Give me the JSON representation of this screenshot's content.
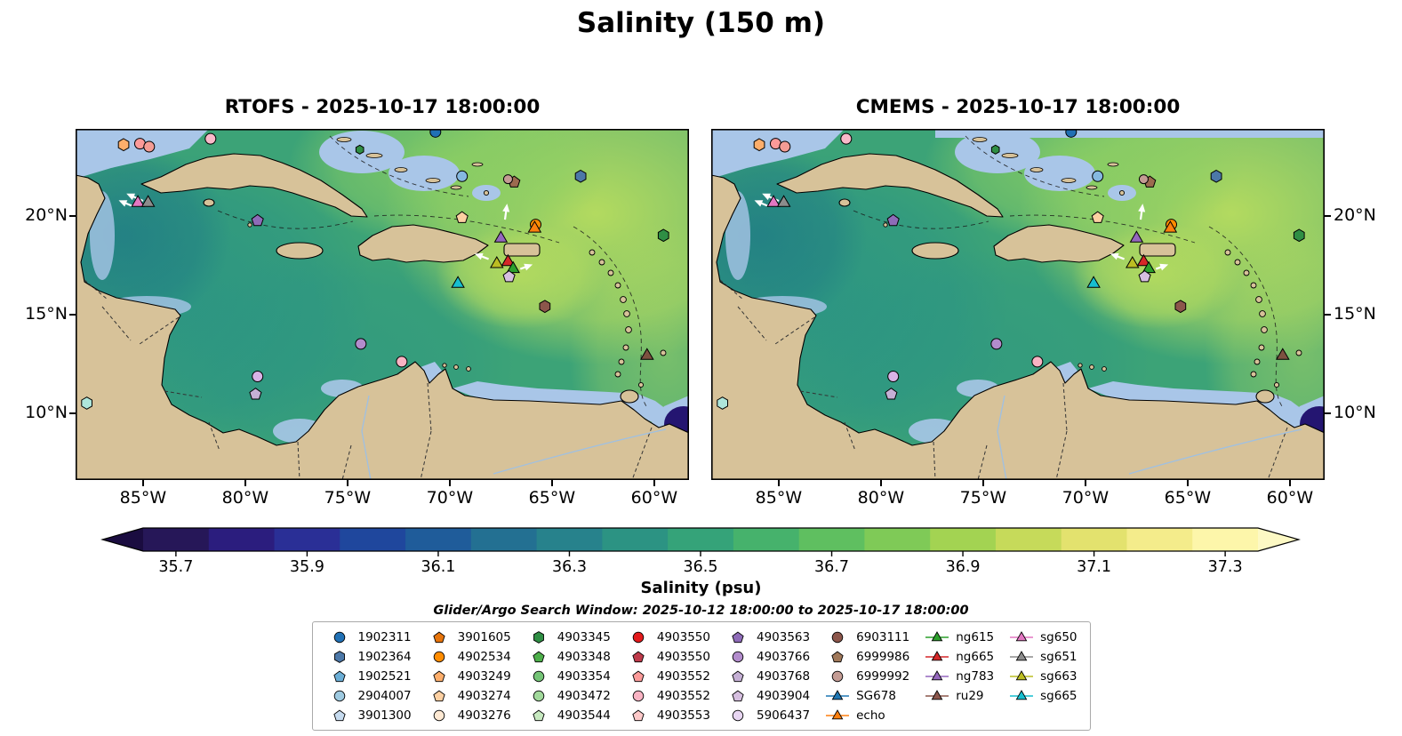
{
  "title": "Salinity (150 m)",
  "chart_data": {
    "type": "heatmap",
    "variable": "Salinity",
    "depth_label": "150 m",
    "panels": [
      {
        "id": "rtofs",
        "title": "RTOFS - 2025-10-17 18:00:00",
        "ytick_side": "left",
        "top_nodata_band": false
      },
      {
        "id": "cmems",
        "title": "CMEMS - 2025-10-17 18:00:00",
        "ytick_side": "right",
        "top_nodata_band": true
      }
    ],
    "axes": {
      "lon_min": -88.3,
      "lon_max": -58.3,
      "lat_min": 6.6,
      "lat_max": 24.4,
      "xticks": [
        {
          "value": -85,
          "label": "85°W"
        },
        {
          "value": -80,
          "label": "80°W"
        },
        {
          "value": -75,
          "label": "75°W"
        },
        {
          "value": -70,
          "label": "70°W"
        },
        {
          "value": -65,
          "label": "65°W"
        },
        {
          "value": -60,
          "label": "60°W"
        }
      ],
      "yticks": [
        {
          "value": 20,
          "label": "20°N"
        },
        {
          "value": 15,
          "label": "15°N"
        },
        {
          "value": 10,
          "label": "10°N"
        }
      ]
    },
    "colorbar": {
      "label": "Salinity (psu)",
      "vmin": 35.65,
      "vmax": 37.35,
      "ticks": [
        35.7,
        35.9,
        36.1,
        36.3,
        36.5,
        36.7,
        36.9,
        37.1,
        37.3
      ],
      "tick_labels": [
        "35.7",
        "35.9",
        "36.1",
        "36.3",
        "36.5",
        "36.7",
        "36.9",
        "37.1",
        "37.3"
      ],
      "colors": [
        "#261758",
        "#2b1d7e",
        "#2a2f96",
        "#1f479d",
        "#1f5c9a",
        "#237092",
        "#27828c",
        "#2c9383",
        "#35a379",
        "#46b26c",
        "#5fbf60",
        "#7fca57",
        "#a3d352",
        "#c6da5a",
        "#e3e26e",
        "#f4ec8b",
        "#fdf6aa"
      ],
      "under_color": "#1a0c40",
      "over_color": "#fdf9c4"
    },
    "annotation": "Glider/Argo Search Window: 2025-10-12 18:00:00 to 2025-10-17 18:00:00",
    "legend_columns": [
      [
        {
          "label": "1902311",
          "marker": "circle",
          "color": "#2171b5"
        },
        {
          "label": "1902364",
          "marker": "hexagon",
          "color": "#4c78a8"
        },
        {
          "label": "1902521",
          "marker": "pentagon",
          "color": "#6baed6"
        },
        {
          "label": "2904007",
          "marker": "circle",
          "color": "#9ecae1"
        },
        {
          "label": "3901300",
          "marker": "pentagon",
          "color": "#c6dbef"
        }
      ],
      [
        {
          "label": "3901605",
          "marker": "pentagon",
          "color": "#e6740b"
        },
        {
          "label": "4902534",
          "marker": "circle",
          "color": "#ff8c00"
        },
        {
          "label": "4903249",
          "marker": "pentagon",
          "color": "#fdae6b"
        },
        {
          "label": "4903274",
          "marker": "pentagon",
          "color": "#fdd0a2"
        },
        {
          "label": "4903276",
          "marker": "circle",
          "color": "#fee9d3"
        }
      ],
      [
        {
          "label": "4903345",
          "marker": "hexagon",
          "color": "#2f8e44"
        },
        {
          "label": "4903348",
          "marker": "pentagon",
          "color": "#4daf4a"
        },
        {
          "label": "4903354",
          "marker": "circle",
          "color": "#74c476"
        },
        {
          "label": "4903472",
          "marker": "circle",
          "color": "#a1d99b"
        },
        {
          "label": "4903544",
          "marker": "pentagon",
          "color": "#c7e9c0"
        }
      ],
      [
        {
          "label": "4903550",
          "marker": "circle",
          "color": "#e31a1c"
        },
        {
          "label": "4903550",
          "marker": "pentagon",
          "color": "#bf3a4a"
        },
        {
          "label": "4903552",
          "marker": "pentagon",
          "color": "#fb9a99"
        },
        {
          "label": "4903552",
          "marker": "circle",
          "color": "#f9b3c3"
        },
        {
          "label": "4903553",
          "marker": "pentagon",
          "color": "#fdc9c9"
        }
      ],
      [
        {
          "label": "4903563",
          "marker": "pentagon",
          "color": "#8e6bb8"
        },
        {
          "label": "4903766",
          "marker": "circle",
          "color": "#b28ccc"
        },
        {
          "label": "4903768",
          "marker": "pentagon",
          "color": "#c5b0d5"
        },
        {
          "label": "4903904",
          "marker": "pentagon",
          "color": "#d6bfe0"
        },
        {
          "label": "5906437",
          "marker": "circle",
          "color": "#e8d6f2"
        }
      ],
      [
        {
          "label": "6903111",
          "marker": "circle",
          "color": "#8c564b"
        },
        {
          "label": "6999986",
          "marker": "pentagon",
          "color": "#a0785a"
        },
        {
          "label": "6999992",
          "marker": "circle",
          "color": "#c49c94"
        },
        {
          "label": "SG678",
          "marker": "glider",
          "color": "#1f77b4"
        },
        {
          "label": "echo",
          "marker": "glider",
          "color": "#ff7f0e"
        }
      ],
      [
        {
          "label": "ng615",
          "marker": "glider",
          "color": "#2ca02c"
        },
        {
          "label": "ng665",
          "marker": "glider",
          "color": "#d62728"
        },
        {
          "label": "ng783",
          "marker": "glider",
          "color": "#9467bd"
        },
        {
          "label": "ru29",
          "marker": "glider",
          "color": "#8c564b"
        }
      ],
      [
        {
          "label": "sg650",
          "marker": "glider",
          "color": "#e377c2"
        },
        {
          "label": "sg651",
          "marker": "glider",
          "color": "#8c8c8c"
        },
        {
          "label": "sg663",
          "marker": "glider",
          "color": "#bcbd22"
        },
        {
          "label": "sg665",
          "marker": "glider",
          "color": "#17becf"
        }
      ]
    ],
    "markers": [
      {
        "id": "4903249",
        "lon": -85.95,
        "lat": 23.6,
        "shape": "hexagon",
        "color": "#fdae6b"
      },
      {
        "id": "4903552",
        "lon": -85.15,
        "lat": 23.65,
        "shape": "circle",
        "color": "#fb9a99"
      },
      {
        "id": "6999992",
        "lon": -84.7,
        "lat": 23.5,
        "shape": "circle",
        "color": "#f49c94"
      },
      {
        "id": "4903553",
        "lon": -81.7,
        "lat": 23.9,
        "shape": "circle",
        "color": "#f9b9c9"
      },
      {
        "id": "4903348",
        "lon": -74.4,
        "lat": 23.35,
        "shape": "hexagon",
        "color": "#2f8e44",
        "r": 5
      },
      {
        "id": "1902311",
        "lon": -70.7,
        "lat": 24.25,
        "shape": "circle",
        "color": "#2070b4"
      },
      {
        "id": "2904007",
        "lon": -69.4,
        "lat": 22.0,
        "shape": "circle",
        "color": "#85b8e0"
      },
      {
        "id": "1902364",
        "lon": -63.6,
        "lat": 22.0,
        "shape": "hexagon",
        "color": "#4c78a8"
      },
      {
        "id": "6999986",
        "lon": -66.85,
        "lat": 21.7,
        "shape": "pentagon",
        "color": "#9c6b4f"
      },
      {
        "id": "6999992",
        "lon": -67.15,
        "lat": 21.85,
        "shape": "circle",
        "color": "#c49c94",
        "r": 5
      },
      {
        "id": "sg650",
        "lon": -85.25,
        "lat": 20.65,
        "shape": "triangle",
        "color": "#e377c2"
      },
      {
        "id": "sg651",
        "lon": -84.75,
        "lat": 20.65,
        "shape": "triangle",
        "color": "#8c8c8c"
      },
      {
        "id": "4903563",
        "lon": -79.4,
        "lat": 19.75,
        "shape": "pentagon",
        "color": "#8e6bb8"
      },
      {
        "id": "4903274",
        "lon": -69.4,
        "lat": 19.9,
        "shape": "pentagon",
        "color": "#fdd0a2"
      },
      {
        "id": "4902534",
        "lon": -65.8,
        "lat": 19.55,
        "shape": "circle",
        "color": "#ff8c00"
      },
      {
        "id": "echo",
        "lon": -65.85,
        "lat": 19.35,
        "shape": "triangle",
        "color": "#ff7f0e"
      },
      {
        "id": "ng783",
        "lon": -67.5,
        "lat": 18.85,
        "shape": "triangle",
        "color": "#9467bd"
      },
      {
        "id": "sg663",
        "lon": -67.7,
        "lat": 17.55,
        "shape": "triangle",
        "color": "#bcbd22"
      },
      {
        "id": "ng665",
        "lon": -67.15,
        "lat": 17.65,
        "shape": "triangle",
        "color": "#d62728"
      },
      {
        "id": "ng615",
        "lon": -66.9,
        "lat": 17.3,
        "shape": "triangle",
        "color": "#2ca02c"
      },
      {
        "id": "4903904",
        "lon": -67.1,
        "lat": 16.9,
        "shape": "pentagon",
        "color": "#d6bfe0"
      },
      {
        "id": "sg665",
        "lon": -69.6,
        "lat": 16.55,
        "shape": "triangle",
        "color": "#17becf"
      },
      {
        "id": "6903111",
        "lon": -65.35,
        "lat": 15.4,
        "shape": "hexagon",
        "color": "#8c564b"
      },
      {
        "id": "4903345",
        "lon": -59.55,
        "lat": 19.0,
        "shape": "hexagon",
        "color": "#2f8e44"
      },
      {
        "id": "ru29",
        "lon": -60.35,
        "lat": 12.9,
        "shape": "triangle",
        "color": "#7d5140"
      },
      {
        "id": "4903766",
        "lon": -74.35,
        "lat": 13.5,
        "shape": "circle",
        "color": "#b28ccc"
      },
      {
        "id": "4903552",
        "lon": -72.35,
        "lat": 12.6,
        "shape": "circle",
        "color": "#f9b3c3"
      },
      {
        "id": "5906437",
        "lon": -79.4,
        "lat": 11.85,
        "shape": "circle",
        "color": "#d9b3e6"
      },
      {
        "id": "4903768",
        "lon": -79.5,
        "lat": 10.95,
        "shape": "pentagon",
        "color": "#c5b0d5"
      },
      {
        "id": "3901300",
        "lon": -87.75,
        "lat": 10.5,
        "shape": "hexagon",
        "color": "#aee6db"
      }
    ],
    "arrows": [
      {
        "lon": -85.0,
        "lat": 20.75,
        "dx": -16,
        "dy": -7
      },
      {
        "lon": -85.55,
        "lat": 20.5,
        "dx": -12,
        "dy": -5
      },
      {
        "lon": -67.3,
        "lat": 19.8,
        "dx": 2,
        "dy": -15
      },
      {
        "lon": -68.1,
        "lat": 17.8,
        "dx": -13,
        "dy": -5
      },
      {
        "lon": -66.55,
        "lat": 17.3,
        "dx": 11,
        "dy": -4
      }
    ]
  }
}
